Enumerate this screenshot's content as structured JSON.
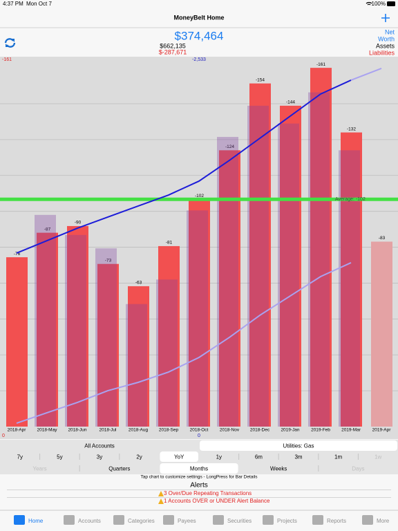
{
  "status_bar": {
    "time": "4:37 PM",
    "date": "Mon Oct 7",
    "battery": "100%"
  },
  "nav": {
    "title": "MoneyBelt Home"
  },
  "summary": {
    "net_worth": "$374,464",
    "assets": "$662,135",
    "liabilities": "$-287,671",
    "labels": {
      "net": "Net",
      "worth": "Worth",
      "assets": "Assets",
      "liabilities": "Liabilities"
    }
  },
  "chart_data": {
    "type": "bar",
    "categories": [
      "2018-Apr",
      "2018-May",
      "2018-Jun",
      "2018-Jul",
      "2018-Aug",
      "2018-Sep",
      "2018-Oct",
      "2018-Nov",
      "2018-Dec",
      "2019-Jan",
      "2019-Feb",
      "2019-Mar",
      "2019-Apr"
    ],
    "series": [
      {
        "values": [
          -76,
          -87,
          -90,
          -73,
          -63,
          -81,
          -102,
          -124,
          -154,
          -144,
          -161,
          -132,
          -83
        ],
        "colors": [
          "#f25050",
          "#f25050",
          "#f25050",
          "#f25050",
          "#f25050",
          "#f25050",
          "#f25050",
          "#f25050",
          "#f25050",
          "#f25050",
          "#f25050",
          "#f25050",
          "#e4a2a4"
        ]
      },
      {
        "color": "#8040a0",
        "values": [
          null,
          -95,
          -86,
          -80,
          -55,
          -66,
          -97,
          -130,
          -144,
          -136,
          -150,
          -124,
          null
        ]
      }
    ],
    "lines": [
      {
        "color": "#1c1cd8",
        "axis": "y2",
        "values": [
          -1227,
          -1315,
          -1403,
          -1482,
          -1560,
          -1638,
          -1736,
          -1883,
          -2039,
          -2196,
          -2352,
          -2450,
          null
        ]
      },
      {
        "color": "#a9a2f0",
        "axis": "y2",
        "values": [
          null,
          null,
          null,
          null,
          null,
          null,
          null,
          null,
          null,
          null,
          null,
          -2450,
          -2533
        ]
      },
      {
        "color": "#a9a2f0",
        "axis": "y2",
        "values": [
          -24,
          -98,
          -171,
          -254,
          -313,
          -386,
          -489,
          -631,
          -787,
          -924,
          -1061,
          -1159,
          null
        ]
      }
    ],
    "ylim": [
      0,
      -166
    ],
    "y2lim": [
      0,
      -2616
    ],
    "y_top_label": -161,
    "y2_top_label": {
      "value": -2533,
      "label": "-2,533"
    },
    "y_bottom_label": 0,
    "y2_bottom_label": 0,
    "gridlines": [
      -16.1,
      -32.2,
      -48.3,
      -64.4,
      -80.5,
      -96.6,
      -112.7,
      -128.8,
      -144.9
    ],
    "average": {
      "value": -102,
      "label": "Average: -102",
      "color": "#44e044"
    }
  },
  "controls": {
    "accounts": [
      "All Accounts",
      "Utilities: Gas"
    ],
    "accounts_selected": 1,
    "periods": [
      "7y",
      "5y",
      "3y",
      "2y",
      "YoY",
      "1y",
      "6m",
      "3m",
      "1m",
      "1w"
    ],
    "periods_selected": 4,
    "periods_disabled": [
      9
    ],
    "views": [
      "Years",
      "Quarters",
      "Months",
      "Weeks",
      "Days"
    ],
    "views_selected": 2,
    "views_disabled": [
      0,
      4
    ]
  },
  "hint": "Tap chart to customize settings - LongPress for Bar Details",
  "alerts": {
    "title": "Alerts",
    "items": [
      "3 Over/Due Repeating Transactions",
      "1 Accounts OVER or UNDER Alert Balance"
    ]
  },
  "tabs": [
    "Home",
    "Accounts",
    "Categories",
    "Payees",
    "Securities",
    "Projects",
    "Reports",
    "More"
  ],
  "tabs_selected": 0
}
